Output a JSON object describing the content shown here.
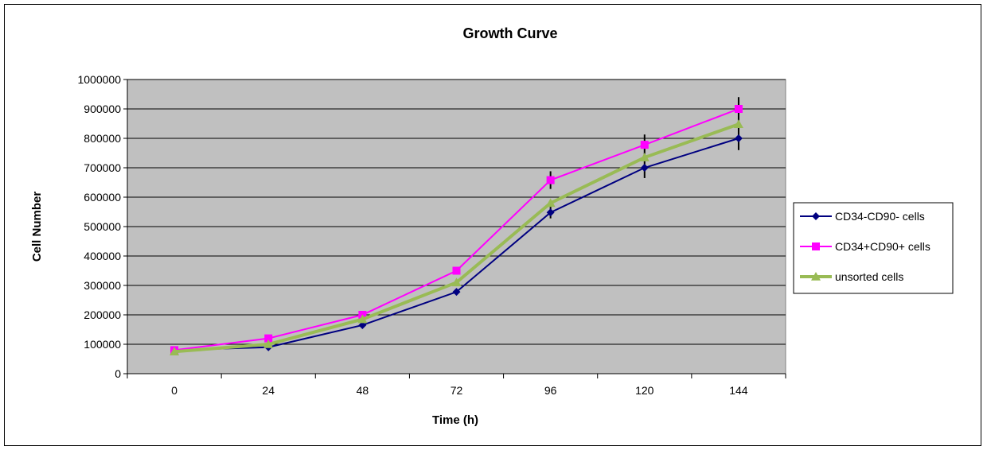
{
  "chart_data": {
    "type": "line",
    "title": "Growth Curve",
    "xlabel": "Time (h)",
    "ylabel": "Cell Number",
    "categories": [
      "0",
      "24",
      "48",
      "72",
      "96",
      "120",
      "144"
    ],
    "ylim": [
      0,
      1000000
    ],
    "yticks": [
      0,
      100000,
      200000,
      300000,
      400000,
      500000,
      600000,
      700000,
      800000,
      900000,
      1000000
    ],
    "grid": "horizontal major gridlines",
    "legend_position": "right",
    "plot_background": "#c0c0c0",
    "series": [
      {
        "name": "CD34-CD90- cells",
        "color": "#000080",
        "marker": "diamond",
        "values": [
          80000,
          90000,
          165000,
          278000,
          548000,
          700000,
          800000
        ],
        "errors": [
          0,
          0,
          0,
          0,
          20000,
          35000,
          40000
        ]
      },
      {
        "name": "CD34+CD90+ cells",
        "color": "#ff00ff",
        "marker": "square",
        "values": [
          80000,
          120000,
          200000,
          350000,
          658000,
          778000,
          900000
        ],
        "errors": [
          0,
          0,
          0,
          0,
          30000,
          35000,
          40000
        ]
      },
      {
        "name": "unsorted cells",
        "color": "#99bb55",
        "marker": "triangle",
        "values": [
          75000,
          100000,
          185000,
          310000,
          580000,
          735000,
          848000
        ],
        "errors": [
          0,
          0,
          0,
          0,
          0,
          0,
          0
        ]
      }
    ]
  }
}
